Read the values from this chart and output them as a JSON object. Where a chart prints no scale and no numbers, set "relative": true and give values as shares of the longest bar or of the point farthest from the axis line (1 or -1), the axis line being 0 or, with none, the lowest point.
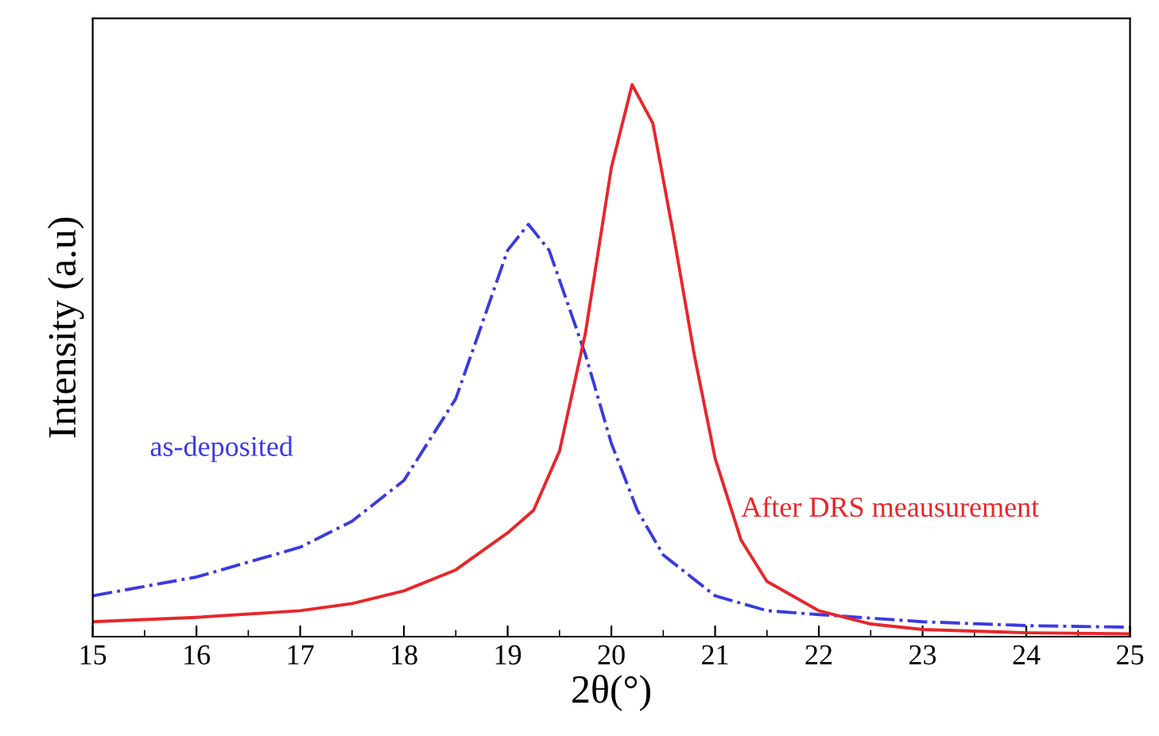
{
  "chart_data": {
    "type": "line",
    "relative": true,
    "xlabel": "2θ(°)",
    "ylabel": "Intensity (a.u)",
    "xlim": [
      15,
      25
    ],
    "xticks": [
      15,
      16,
      17,
      18,
      19,
      20,
      21,
      22,
      23,
      24,
      25
    ],
    "tick_labels": "x",
    "grid": false,
    "legend": false,
    "marker": "none",
    "series": [
      {
        "name": "as-deposited",
        "color": "#3a3ae0",
        "line_style": "dashdot",
        "x": [
          15,
          16,
          17,
          17.5,
          18,
          18.5,
          18.75,
          19,
          19.2,
          19.4,
          19.6,
          19.75,
          20,
          20.25,
          20.5,
          21,
          21.5,
          22,
          23,
          24,
          25
        ],
        "values": [
          0.074,
          0.108,
          0.162,
          0.209,
          0.283,
          0.431,
          0.565,
          0.7,
          0.747,
          0.7,
          0.592,
          0.511,
          0.35,
          0.229,
          0.148,
          0.074,
          0.047,
          0.04,
          0.027,
          0.02,
          0.017
        ]
      },
      {
        "name": "After DRS meausurement",
        "color": "#e8262a",
        "line_style": "solid",
        "x": [
          15,
          16,
          17,
          17.5,
          18,
          18.5,
          19,
          19.25,
          19.5,
          19.75,
          20,
          20.2,
          20.4,
          20.6,
          20.8,
          21,
          21.25,
          21.5,
          22,
          22.5,
          23,
          24,
          25
        ],
        "values": [
          0.027,
          0.035,
          0.047,
          0.06,
          0.083,
          0.121,
          0.188,
          0.229,
          0.336,
          0.55,
          0.85,
          1,
          0.93,
          0.727,
          0.51,
          0.323,
          0.175,
          0.1,
          0.047,
          0.023,
          0.013,
          0.007,
          0.005
        ]
      }
    ]
  }
}
